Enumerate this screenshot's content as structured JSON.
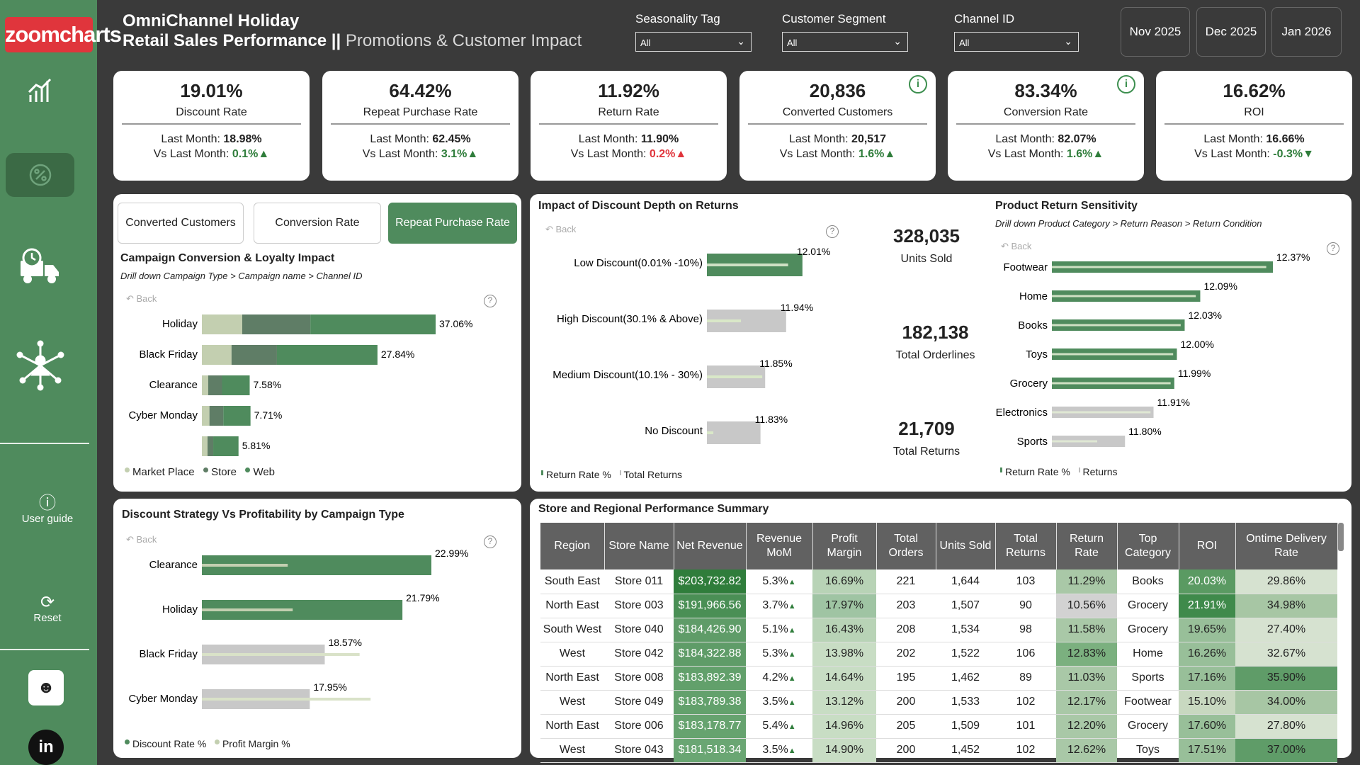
{
  "app": {
    "logo_text": "zoomcharts"
  },
  "sidebar": {
    "user_guide": "User guide",
    "reset": "Reset",
    "nav_icons": [
      "bar-chart-icon",
      "discount-gear-icon",
      "delivery-truck-icon",
      "network-person-icon"
    ]
  },
  "header": {
    "title_line1": "OmniChannel Holiday",
    "title_line2": "Retail Sales Performance",
    "separator": " || ",
    "subtitle": "Promotions & Customer Impact"
  },
  "filters": [
    {
      "label": "Seasonality Tag",
      "value": "All"
    },
    {
      "label": "Customer Segment",
      "value": "All"
    },
    {
      "label": "Channel ID",
      "value": "All"
    }
  ],
  "months": [
    "Nov 2025",
    "Dec 2025",
    "Jan 2026"
  ],
  "kpis": [
    {
      "value": "19.01%",
      "label": "Discount Rate",
      "last_label": "Last Month: ",
      "last": "18.98%",
      "vs_label": "Vs Last Month: ",
      "vs": "0.1%",
      "dir": "up",
      "info": false
    },
    {
      "value": "64.42%",
      "label": "Repeat Purchase Rate",
      "last_label": "Last Month: ",
      "last": "62.45%",
      "vs_label": "Vs Last Month: ",
      "vs": "3.1%",
      "dir": "up",
      "info": false
    },
    {
      "value": "11.92%",
      "label": "Return Rate",
      "last_label": "Last Month: ",
      "last": "11.90%",
      "vs_label": "Vs Last Month: ",
      "vs": "0.2%",
      "dir": "up-red",
      "info": false
    },
    {
      "value": "20,836",
      "label": "Converted Customers",
      "last_label": "Last Month: ",
      "last": "20,517",
      "vs_label": "Vs Last Month: ",
      "vs": "1.6%",
      "dir": "up",
      "info": true
    },
    {
      "value": "83.34%",
      "label": "Conversion Rate",
      "last_label": "Last Month: ",
      "last": "82.07%",
      "vs_label": "Vs Last Month: ",
      "vs": "1.6%",
      "dir": "up",
      "info": true
    },
    {
      "value": "16.62%",
      "label": "ROI",
      "last_label": "Last Month: ",
      "last": "16.66%",
      "vs_label": "Vs Last Month: ",
      "vs": "-0.3%",
      "dir": "down",
      "info": false
    }
  ],
  "colors": {
    "green": "#4f8b5d",
    "dark_green": "#3b6a45",
    "light_green": "#c3cfb0",
    "mid_green": "#5f7d66",
    "grey_bar": "#c8c8c8",
    "red": "#e0353c"
  },
  "tabs": [
    "Converted Customers",
    "Conversion Rate",
    "Repeat Purchase Rate"
  ],
  "back_label": "Back",
  "campaign_chart": {
    "title": "Campaign Conversion & Loyalty Impact",
    "drill": "Drill down Campaign Type > Campaign name > Channel ID",
    "chart_data": {
      "type": "bar",
      "categories": [
        "Holiday",
        "Black Friday",
        "Clearance",
        "Cyber Monday",
        ""
      ],
      "labels": [
        "37.06%",
        "27.84%",
        "7.58%",
        "7.71%",
        "5.81%"
      ],
      "series": [
        {
          "name": "Market Place",
          "values": [
            6.4,
            4.7,
            1.0,
            1.2,
            0.9
          ]
        },
        {
          "name": "Store",
          "values": [
            10.8,
            7.2,
            2.2,
            2.2,
            0.9
          ]
        },
        {
          "name": "Web",
          "values": [
            19.86,
            15.94,
            4.38,
            4.31,
            4.01
          ]
        }
      ],
      "xlim": [
        0,
        37.06
      ]
    },
    "legend": [
      "Market Place",
      "Store",
      "Web"
    ]
  },
  "discount_returns": {
    "title": "Impact of Discount Depth on Returns",
    "chart_data": {
      "type": "bar",
      "categories": [
        "Low Discount(0.01% -10%)",
        "High Discount(30.1% & Above)",
        "Medium Discount(10.1% - 30%)",
        "No Discount"
      ],
      "series": [
        {
          "name": "Return Rate %",
          "values": [
            12.01,
            11.94,
            11.85,
            11.83
          ]
        },
        {
          "name": "Total Returns",
          "values": [
            0.85,
            0.43,
            0.95,
            0.12
          ]
        }
      ],
      "labels": [
        "12.01%",
        "11.94%",
        "11.85%",
        "11.83%"
      ]
    },
    "legend": [
      "Return Rate %",
      "Total Returns"
    ]
  },
  "stats": [
    {
      "value": "328,035",
      "label": "Units Sold"
    },
    {
      "value": "182,138",
      "label": "Total Orderlines"
    },
    {
      "value": "21,709",
      "label": "Total Returns"
    }
  ],
  "product_sensitivity": {
    "title": "Product Return Sensitivity",
    "drill": "Drill down Product Category > Return Reason > Return Condition",
    "chart_data": {
      "type": "bar",
      "categories": [
        "Footwear",
        "Home",
        "Books",
        "Toys",
        "Grocery",
        "Electronics",
        "Sports"
      ],
      "series": [
        {
          "name": "Return Rate %",
          "values": [
            12.37,
            12.09,
            12.03,
            12.0,
            11.99,
            11.91,
            11.8
          ]
        },
        {
          "name": "Returns",
          "values": [
            0.97,
            0.97,
            0.97,
            0.97,
            0.97,
            0.97,
            0.62
          ]
        }
      ],
      "labels": [
        "12.37%",
        "12.09%",
        "12.03%",
        "12.00%",
        "11.99%",
        "11.91%",
        "11.80%"
      ]
    },
    "legend": [
      "Return Rate %",
      "Returns"
    ]
  },
  "discount_strategy": {
    "title": "Discount Strategy Vs Profitability by Campaign Type",
    "chart_data": {
      "type": "bar",
      "categories": [
        "Clearance",
        "Holiday",
        "Black Friday",
        "Cyber Monday"
      ],
      "series": [
        {
          "name": "Discount Rate %",
          "values": [
            22.99,
            21.79,
            18.57,
            17.95
          ]
        },
        {
          "name": "Profit Margin %",
          "values": [
            8.6,
            9.1,
            15.8,
            16.9
          ]
        }
      ],
      "labels": [
        "22.99%",
        "21.79%",
        "18.57%",
        "17.95%"
      ]
    },
    "legend": [
      "Discount Rate %",
      "Profit Margin %"
    ]
  },
  "table": {
    "title": "Store and Regional Performance Summary",
    "columns": [
      "Region",
      "Store Name",
      "Net Revenue",
      "Revenue MoM",
      "Profit Margin",
      "Total Orders",
      "Units Sold",
      "Total Returns",
      "Return Rate",
      "Top Category",
      "ROI",
      "Ontime Delivery Rate"
    ],
    "rows": [
      [
        "South East",
        "Store 011",
        "$203,732.82",
        "5.3%",
        "16.69%",
        "221",
        "1,644",
        "103",
        "11.29%",
        "Books",
        "20.03%",
        "29.86%"
      ],
      [
        "North East",
        "Store 003",
        "$191,966.56",
        "3.7%",
        "17.97%",
        "203",
        "1,507",
        "90",
        "10.56%",
        "Grocery",
        "21.91%",
        "34.98%"
      ],
      [
        "South West",
        "Store 040",
        "$184,426.90",
        "5.1%",
        "16.43%",
        "208",
        "1,534",
        "98",
        "11.58%",
        "Grocery",
        "19.65%",
        "27.40%"
      ],
      [
        "West",
        "Store 042",
        "$184,322.88",
        "5.3%",
        "13.98%",
        "202",
        "1,522",
        "106",
        "12.83%",
        "Home",
        "16.26%",
        "32.67%"
      ],
      [
        "North East",
        "Store 008",
        "$183,892.39",
        "4.2%",
        "14.64%",
        "195",
        "1,462",
        "89",
        "11.03%",
        "Sports",
        "17.16%",
        "35.90%"
      ],
      [
        "West",
        "Store 049",
        "$183,789.38",
        "3.5%",
        "13.12%",
        "200",
        "1,533",
        "102",
        "12.17%",
        "Footwear",
        "15.10%",
        "34.00%"
      ],
      [
        "North East",
        "Store 006",
        "$183,178.77",
        "5.4%",
        "14.96%",
        "205",
        "1,509",
        "101",
        "12.20%",
        "Grocery",
        "17.60%",
        "27.80%"
      ],
      [
        "West",
        "Store 043",
        "$181,518.34",
        "3.5%",
        "14.90%",
        "200",
        "1,452",
        "102",
        "12.62%",
        "Toys",
        "17.51%",
        "37.00%"
      ]
    ]
  }
}
